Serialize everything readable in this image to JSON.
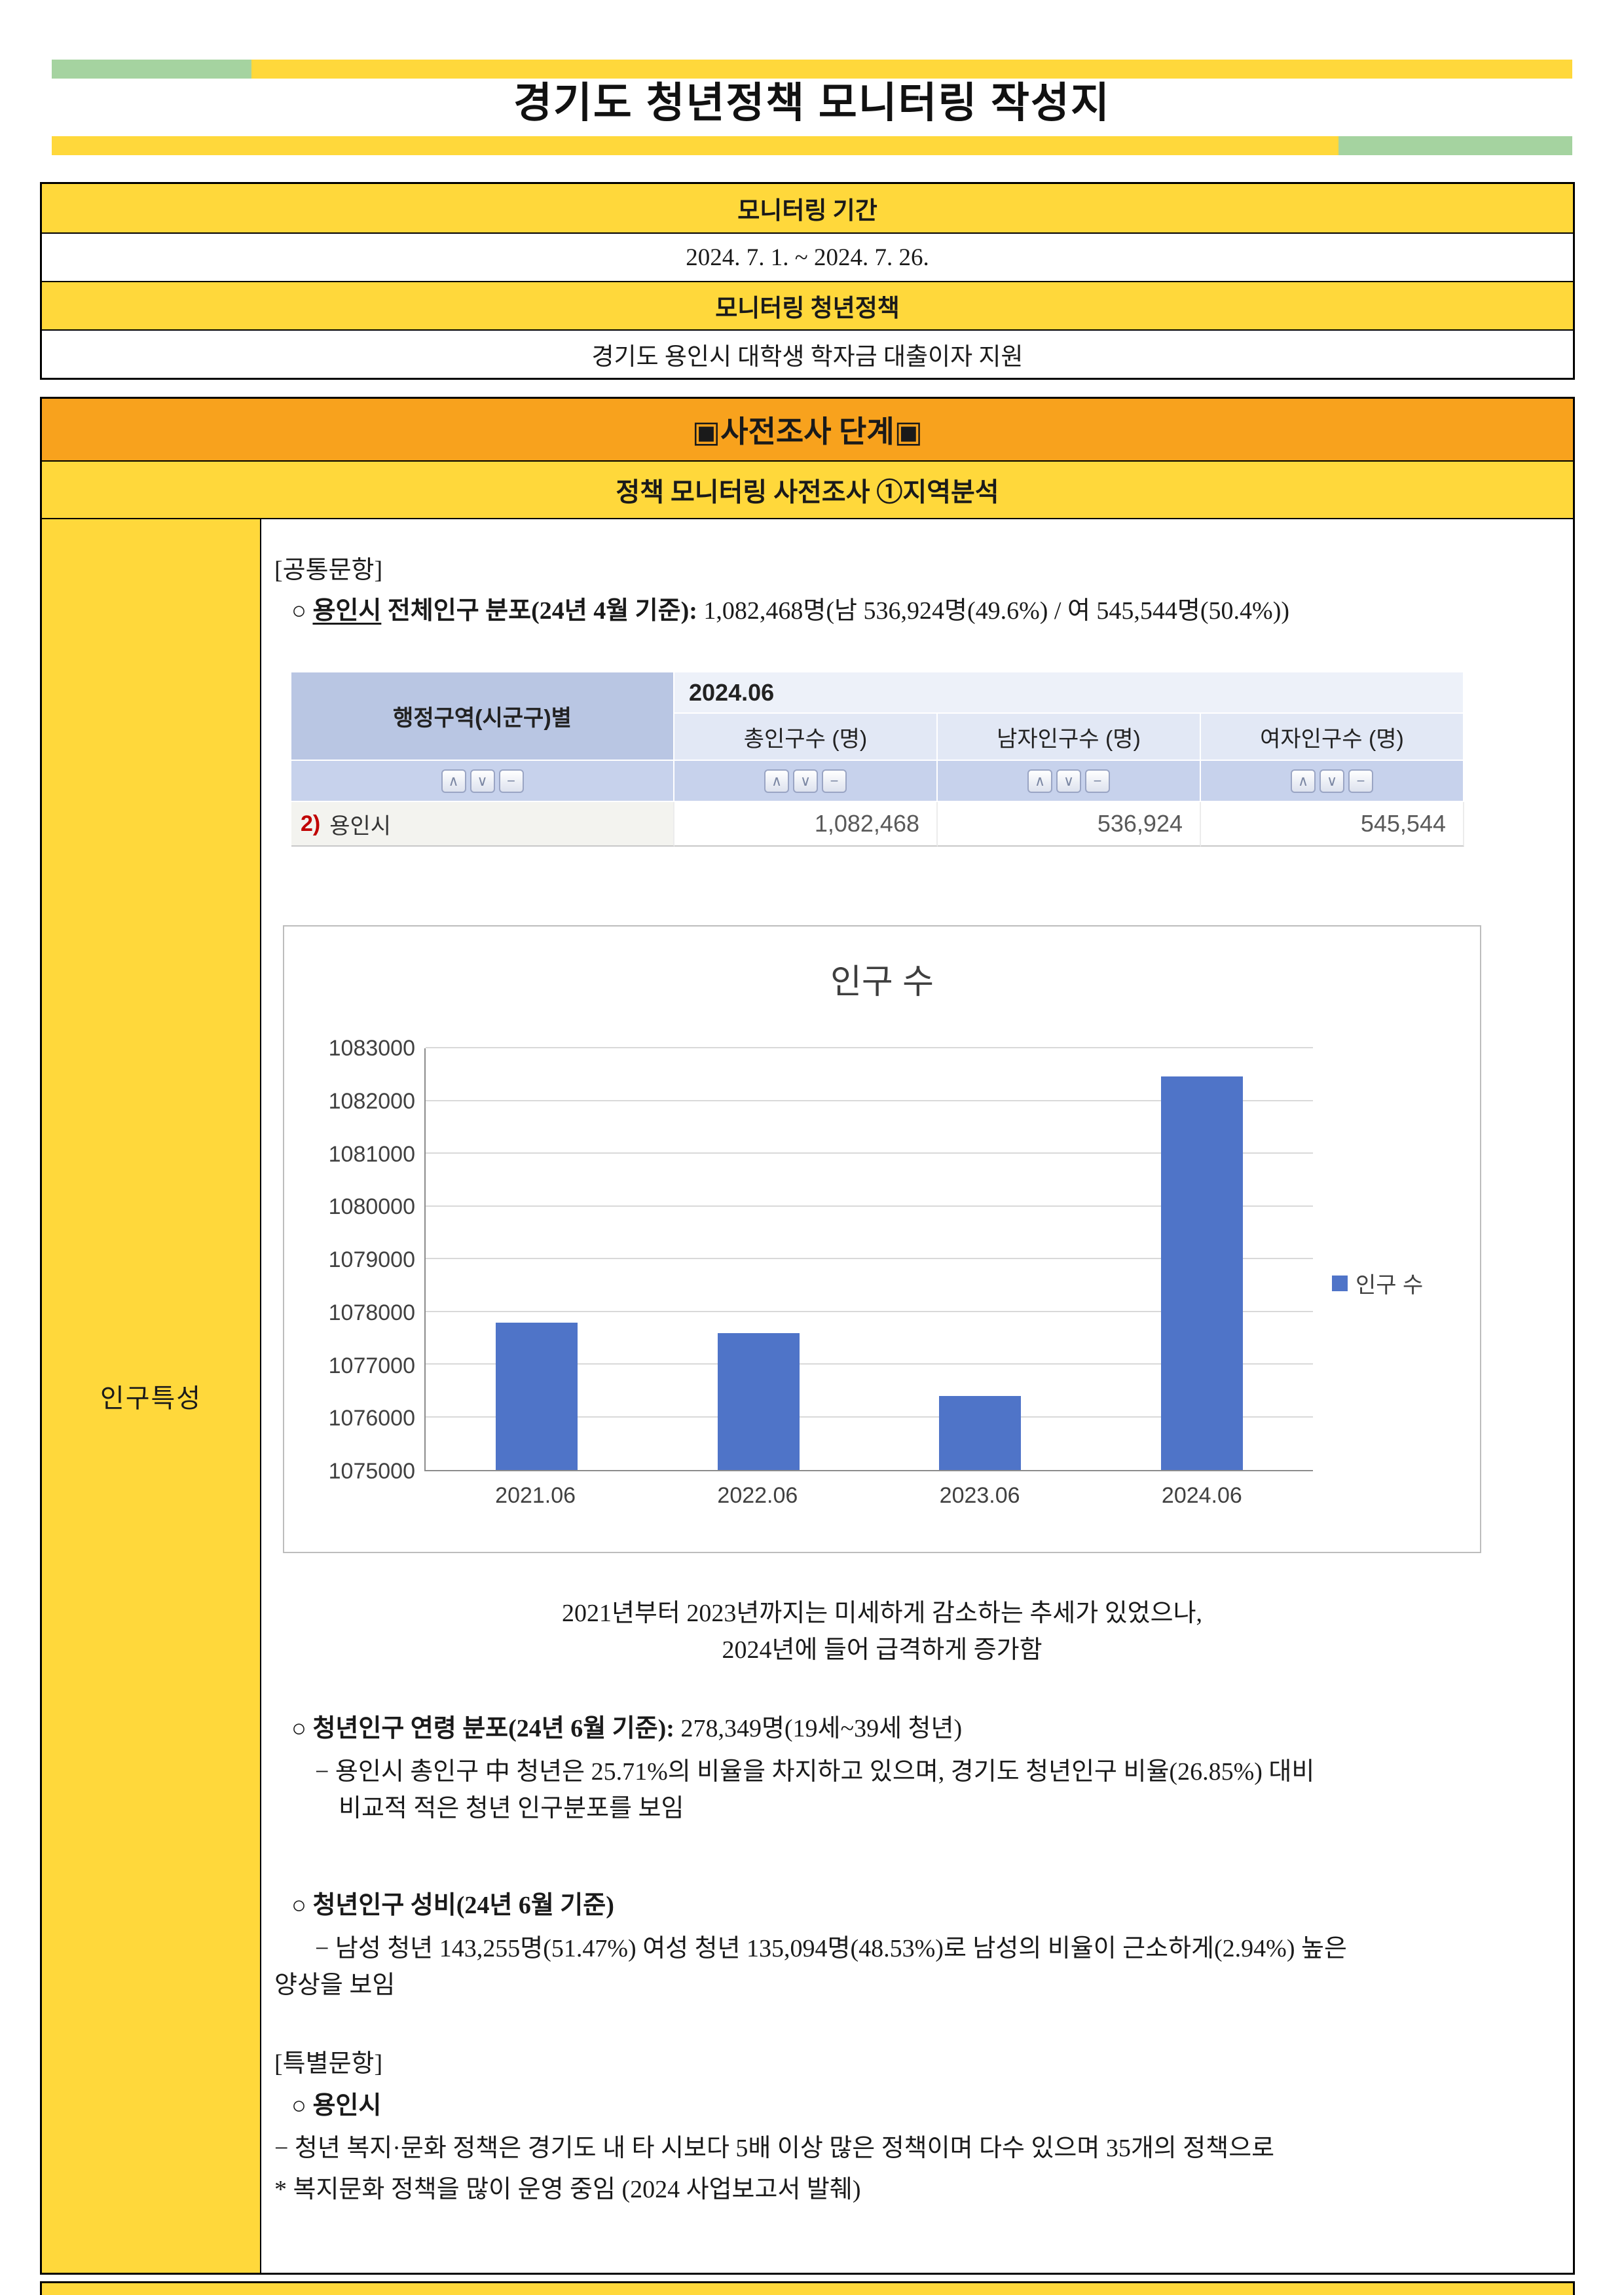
{
  "page": {
    "title": "경기도 청년정책 모니터링 작성지"
  },
  "info_table": {
    "header1": "모니터링 기간",
    "value1": "2024. 7. 1. ~ 2024. 7. 26.",
    "header2": "모니터링 청년정책",
    "value2": "경기도 용인시 대학생 학자금 대출이자 지원"
  },
  "section": {
    "title": "▣사전조사 단계▣",
    "subtitle": "정책 모니터링 사전조사 ①지역분석"
  },
  "sidebar": {
    "label": "인구특성"
  },
  "content": {
    "common_tag": "[공통문항]",
    "population_line": {
      "bullet": "○ ",
      "underlined": "용인시",
      "bold": " 전체인구 분포(24년 4월 기준):",
      "normal": " 1,082,468명(남 536,924명(49.6%) / 여 545,544명(50.4%))"
    },
    "note_line1": "2021년부터 2023년까지는 미세하게 감소하는 추세가 있었으나,",
    "note_line2": "2024년에 들어 급격하게 증가함",
    "youth_age": {
      "bold": "○ 청년인구 연령 분포(24년 6월 기준):",
      "normal": " 278,349명(19세~39세 청년)",
      "sub1": "− 용인시 총인구 中 청년은 25.71%의 비율을 차지하고 있으며, 경기도 청년인구 비율(26.85%) 대비",
      "sub2": "비교적 적은 청년 인구분포를 보임"
    },
    "youth_ratio": {
      "bold": "○ 청년인구 성비(24년 6월 기준)",
      "sub1": "− 남성 청년 143,255명(51.47%) 여성 청년 135,094명(48.53%)로 남성의 비율이 근소하게(2.94%) 높은",
      "sub2": "양상을 보임"
    },
    "special_tag": "[특별문항]",
    "special_city": "○ 용인시",
    "special_line1": "− 청년 복지·문화 정책은 경기도 내 타 시보다 5배 이상 많은 정책이며 다수 있으며 35개의 정책으로",
    "special_line2": "* 복지문화 정책을 많이 운영 중임 (2024 사업보고서 발췌)"
  },
  "stats_table": {
    "col_header": "행정구역(시군구)별",
    "period": "2024.06",
    "columns": [
      "총인구수 (명)",
      "남자인구수 (명)",
      "여자인구수 (명)"
    ],
    "sort_buttons": [
      {
        "glyph": "∧",
        "name": "sort-asc-icon"
      },
      {
        "glyph": "∨",
        "name": "sort-desc-icon"
      },
      {
        "glyph": "−",
        "name": "collapse-icon"
      }
    ],
    "row": {
      "index": "2)",
      "name": "용인시",
      "values": [
        "1,082,468",
        "536,924",
        "545,544"
      ]
    }
  },
  "chart_data": {
    "type": "bar",
    "title": "인구 수",
    "categories": [
      "2021.06",
      "2022.06",
      "2023.06",
      "2024.06"
    ],
    "values": [
      1077800,
      1077600,
      1076400,
      1082468
    ],
    "ylim": [
      1075000,
      1083000
    ],
    "ytick_step": 1000,
    "legend": "인구 수",
    "legend_position": "right",
    "grid": true,
    "bar_color": "#4F74C8"
  }
}
